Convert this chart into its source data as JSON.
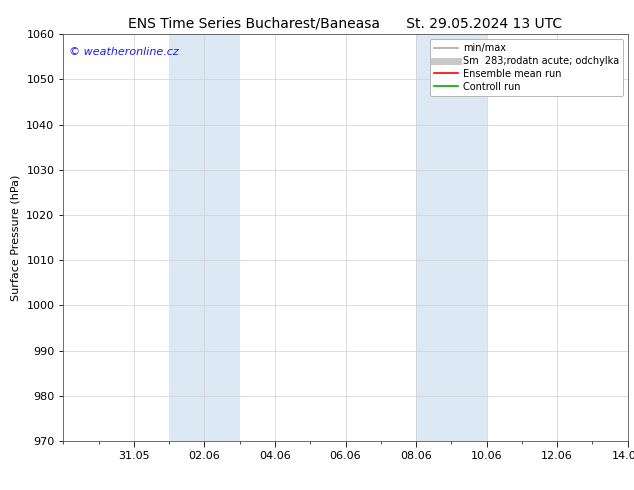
{
  "title_left": "ENS Time Series Bucharest/Baneasa",
  "title_right": "St. 29.05.2024 13 UTC",
  "ylabel": "Surface Pressure (hPa)",
  "ylim": [
    970,
    1060
  ],
  "yticks": [
    970,
    980,
    990,
    1000,
    1010,
    1020,
    1030,
    1040,
    1050,
    1060
  ],
  "xtick_labels": [
    "31.05",
    "02.06",
    "04.06",
    "06.06",
    "08.06",
    "10.06",
    "12.06",
    "14.06"
  ],
  "xtick_days_from_start": [
    2,
    4,
    6,
    8,
    10,
    12,
    14,
    16
  ],
  "x_total_days": 16,
  "shaded_regions": [
    {
      "start_day": 3,
      "end_day": 5
    },
    {
      "start_day": 10,
      "end_day": 12
    }
  ],
  "shaded_color": "#dce9f5",
  "background_color": "#ffffff",
  "plot_bg_color": "#ffffff",
  "watermark_text": "© weatheronline.cz",
  "watermark_color": "#1a1aff",
  "legend_entries": [
    {
      "label": "min/max",
      "color": "#aaaaaa",
      "lw": 1.2
    },
    {
      "label": "Sm  283;rodatn acute; odchylka",
      "color": "#c8c8c8",
      "lw": 5
    },
    {
      "label": "Ensemble mean run",
      "color": "#ff0000",
      "lw": 1.2
    },
    {
      "label": "Controll run",
      "color": "#00aa00",
      "lw": 1.2
    }
  ],
  "title_fontsize": 10,
  "ylabel_fontsize": 8,
  "tick_fontsize": 8,
  "legend_fontsize": 7,
  "watermark_fontsize": 8
}
